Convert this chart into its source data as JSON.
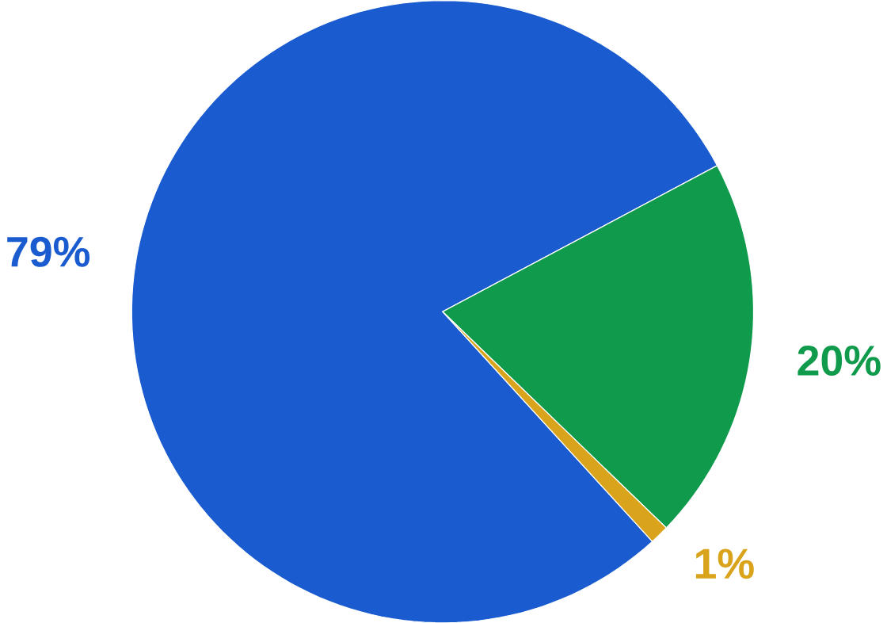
{
  "chart_data": {
    "type": "pie",
    "categories": [
      null,
      null,
      null
    ],
    "values": [
      79,
      20,
      1
    ],
    "colors": [
      "#1a5ccf",
      "#0f9a4c",
      "#d9a31c"
    ],
    "value_labels": [
      "79%",
      "20%",
      "1%"
    ]
  }
}
